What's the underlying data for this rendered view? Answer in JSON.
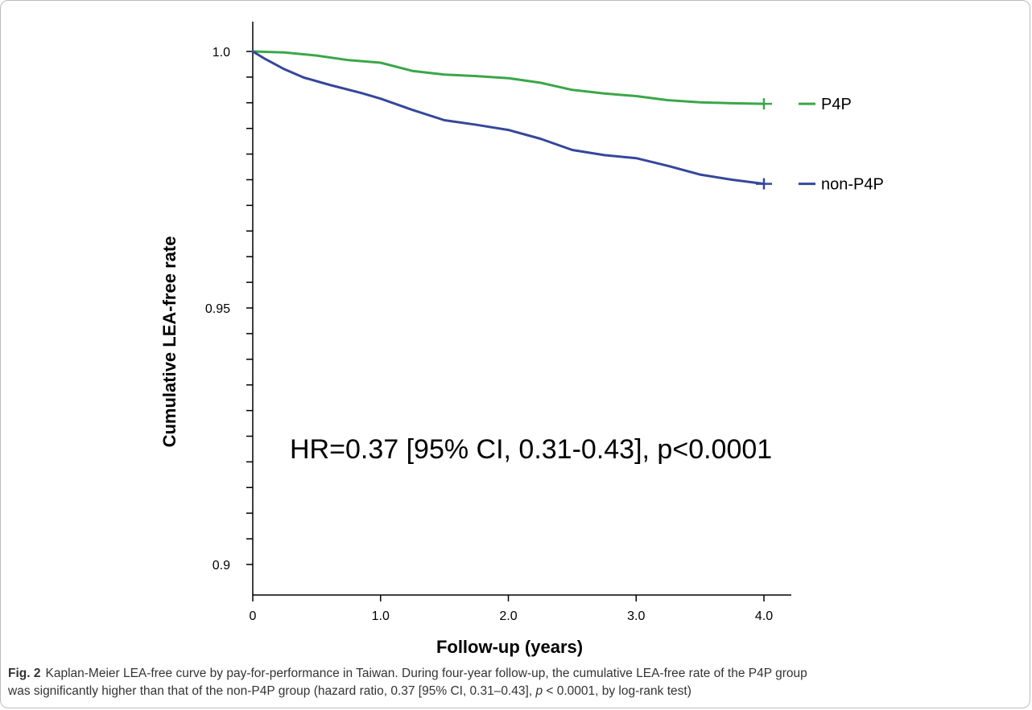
{
  "chart_data": {
    "type": "line",
    "subtype": "kaplan-meier step curve",
    "xlabel": "Follow-up (years)",
    "ylabel": "Cumulative LEA-free rate",
    "xlim": [
      0,
      4.2
    ],
    "ylim": [
      0.897,
      1.005
    ],
    "x_ticks": [
      0,
      1,
      2,
      3,
      4
    ],
    "x_tick_labels": [
      "0",
      "1.0",
      "2.0",
      "3.0",
      "4.0"
    ],
    "y_ticks": [
      0.9,
      0.905,
      0.91,
      0.915,
      0.92,
      0.925,
      0.93,
      0.935,
      0.94,
      0.945,
      0.95,
      0.955,
      0.96,
      0.965,
      0.97,
      0.975,
      0.98,
      0.985,
      0.99,
      0.995,
      1.0
    ],
    "y_tick_labels": [
      {
        "value": 0.9,
        "label": "0.9"
      },
      {
        "value": 0.95,
        "label": "0.95"
      },
      {
        "value": 1.0,
        "label": "1.0"
      }
    ],
    "grid": false,
    "legend": "right",
    "annotation": "HR=0.37 [95% CI, 0.31-0.43], p<0.0001",
    "series": [
      {
        "name": "P4P",
        "color": "#3aa748",
        "x": [
          0,
          0.25,
          0.5,
          0.75,
          1.0,
          1.25,
          1.5,
          1.75,
          2.0,
          2.25,
          2.5,
          2.75,
          3.0,
          3.25,
          3.5,
          3.75,
          4.0
        ],
        "y": [
          1.0,
          0.9998,
          0.9992,
          0.9983,
          0.9978,
          0.9962,
          0.9955,
          0.9952,
          0.9948,
          0.9939,
          0.9925,
          0.9918,
          0.9913,
          0.9905,
          0.9901,
          0.9899,
          0.9898
        ]
      },
      {
        "name": "non-P4P",
        "color": "#35479a",
        "x": [
          0,
          0.1,
          0.25,
          0.4,
          0.6,
          0.85,
          1.0,
          1.25,
          1.5,
          1.75,
          2.0,
          2.25,
          2.5,
          2.75,
          3.0,
          3.25,
          3.5,
          3.75,
          4.0
        ],
        "y": [
          1.0,
          0.9985,
          0.9965,
          0.9949,
          0.9935,
          0.9919,
          0.9908,
          0.9886,
          0.9866,
          0.9857,
          0.9847,
          0.983,
          0.9808,
          0.9798,
          0.9792,
          0.9777,
          0.976,
          0.975,
          0.9742
        ]
      }
    ]
  },
  "caption": {
    "label": "Fig. 2",
    "line1": "Kaplan-Meier LEA-free curve by pay-for-performance in Taiwan. During four-year follow-up, the cumulative LEA-free rate of the P4P group",
    "line2a": "was significantly higher than that of the non-P4P group (hazard ratio, 0.37 [95% CI, 0.31–0.43], ",
    "line2p": "p",
    "line2b": " < 0.0001, by log-rank test)"
  }
}
